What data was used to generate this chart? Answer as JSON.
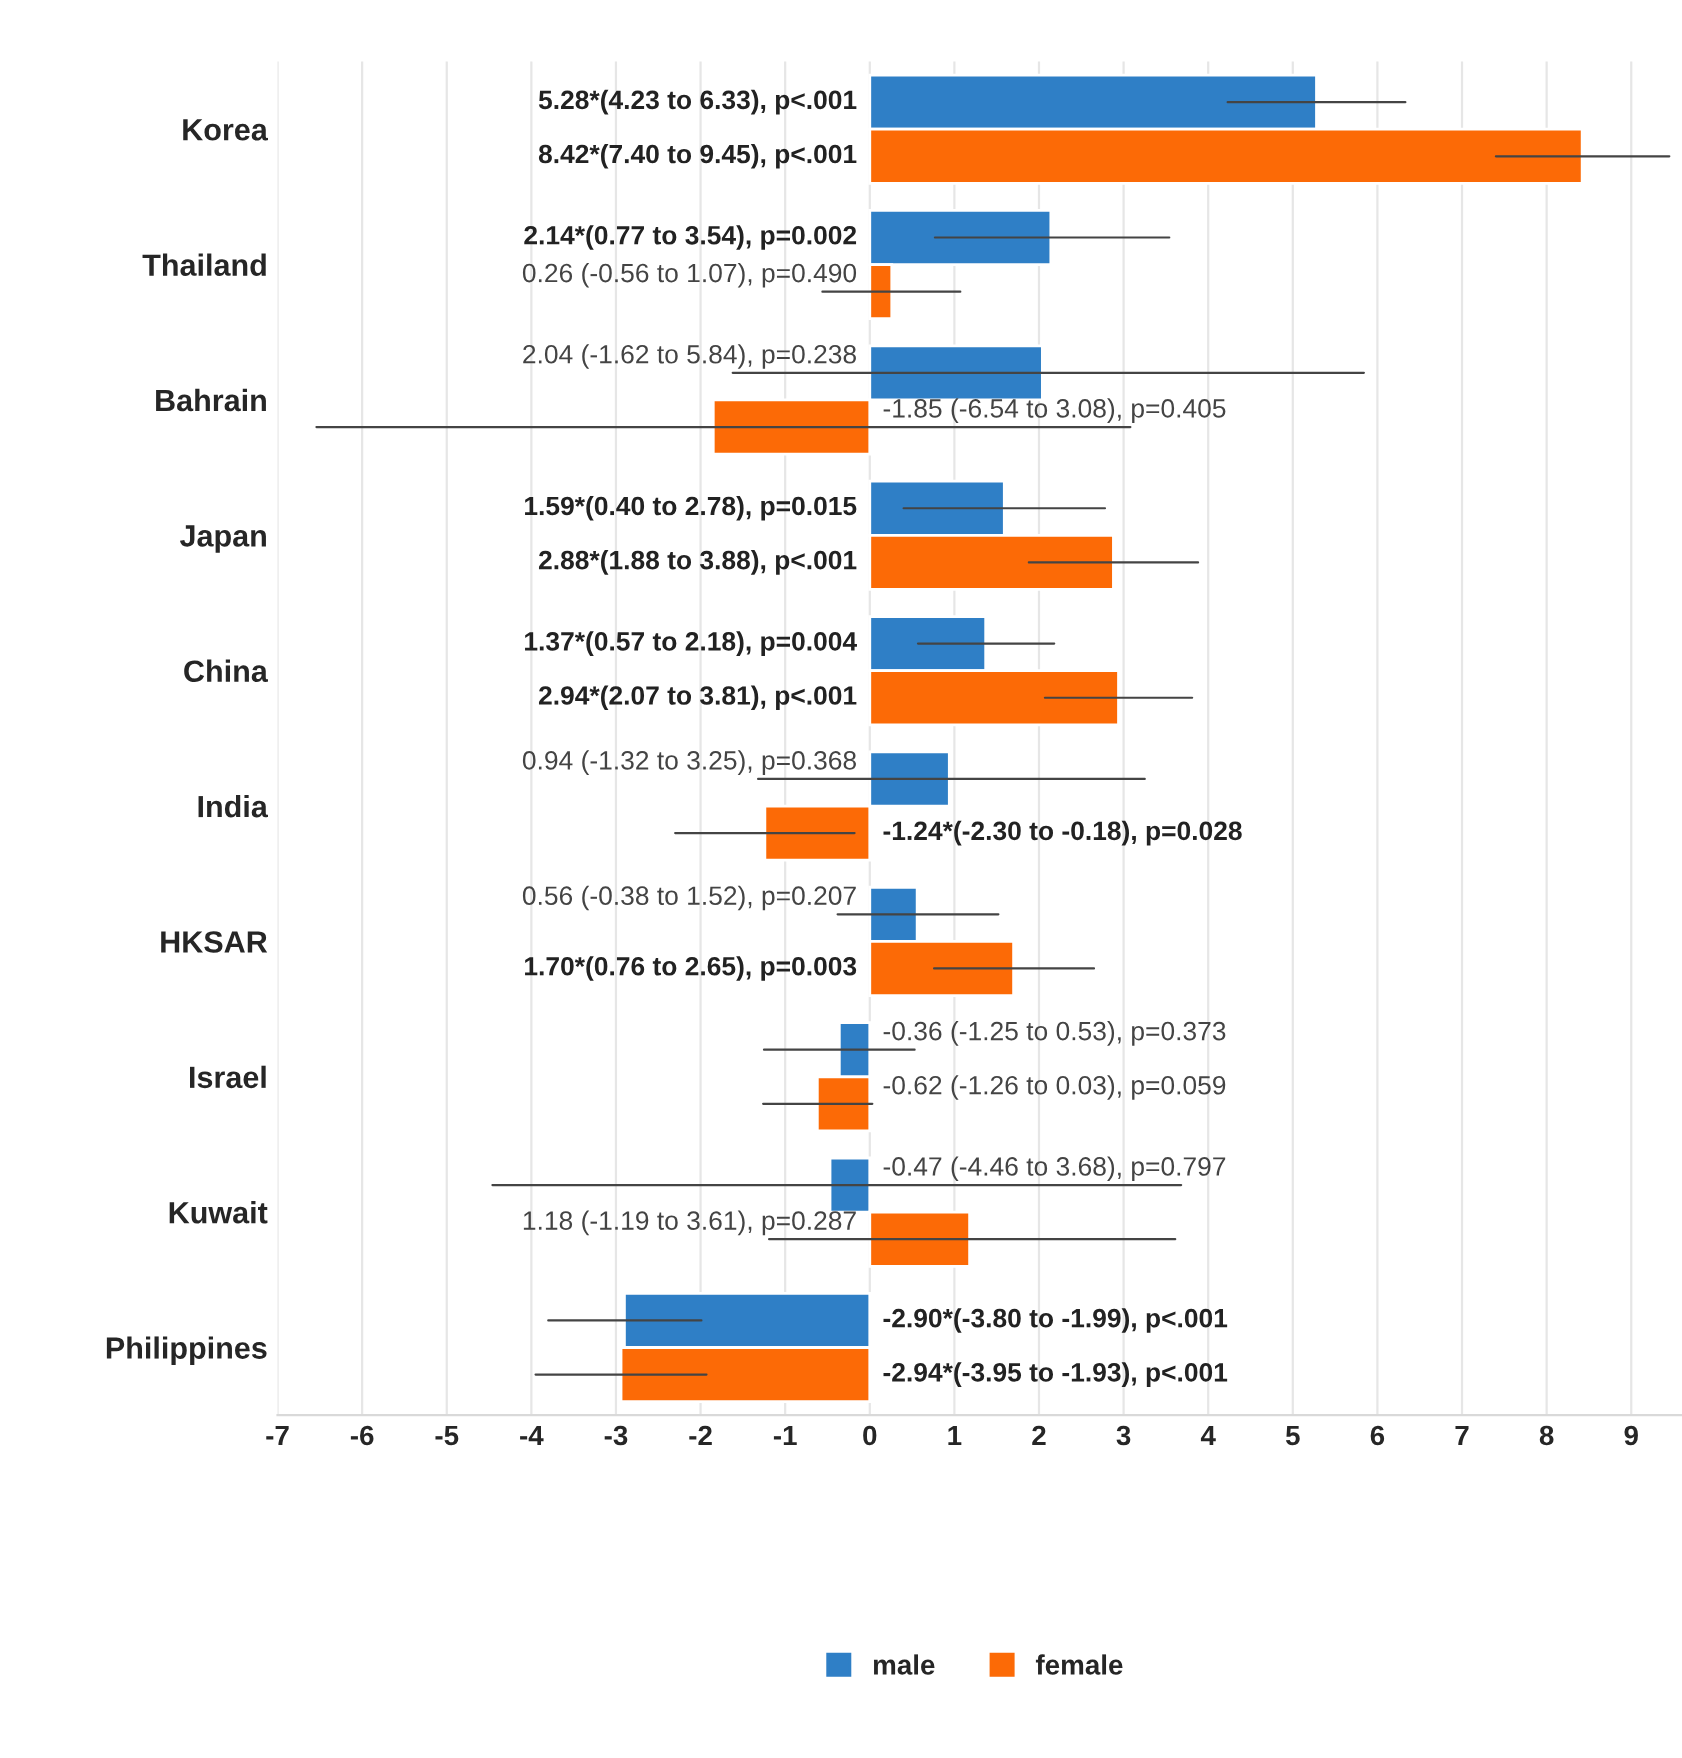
{
  "chart_data": {
    "type": "bar",
    "orientation": "horizontal",
    "categories": [
      "Korea",
      "Thailand",
      "Bahrain",
      "Japan",
      "China",
      "India",
      "HKSAR",
      "Israel",
      "Kuwait",
      "Philippines"
    ],
    "series": [
      {
        "name": "male",
        "color": "#2f7fc6",
        "values": [
          5.28,
          2.14,
          2.04,
          1.59,
          1.37,
          0.94,
          0.56,
          -0.36,
          -0.47,
          -2.9
        ],
        "errors": [
          [
            4.23,
            6.33
          ],
          [
            0.77,
            3.54
          ],
          [
            -1.62,
            5.84
          ],
          [
            0.4,
            2.78
          ],
          [
            0.57,
            2.18
          ],
          [
            -1.32,
            3.25
          ],
          [
            -0.38,
            1.52
          ],
          [
            -1.25,
            0.53
          ],
          [
            -4.46,
            3.68
          ],
          [
            -3.8,
            -1.99
          ]
        ],
        "value_labels": [
          "5.28*(4.23 to 6.33), p<.001",
          "2.14*(0.77 to 3.54), p=0.002",
          "2.04 (-1.62 to 5.84), p=0.238",
          "1.59*(0.40 to 2.78), p=0.015",
          "1.37*(0.57 to 2.18), p=0.004",
          "0.94 (-1.32 to 3.25), p=0.368",
          "0.56 (-0.38 to 1.52), p=0.207",
          "-0.36 (-1.25 to 0.53), p=0.373",
          "-0.47 (-4.46 to 3.68), p=0.797",
          "-2.90*(-3.80 to -1.99), p<.001"
        ]
      },
      {
        "name": "female",
        "color": "#fc6a06",
        "values": [
          8.42,
          0.26,
          -1.85,
          2.88,
          2.94,
          -1.24,
          1.7,
          -0.62,
          1.18,
          -2.94
        ],
        "errors": [
          [
            7.4,
            9.45
          ],
          [
            -0.56,
            1.07
          ],
          [
            -6.54,
            3.08
          ],
          [
            1.88,
            3.88
          ],
          [
            2.07,
            3.81
          ],
          [
            -2.3,
            -0.18
          ],
          [
            0.76,
            2.65
          ],
          [
            -1.26,
            0.03
          ],
          [
            -1.19,
            3.61
          ],
          [
            -3.95,
            -1.93
          ]
        ],
        "value_labels": [
          "8.42*(7.40 to 9.45), p<.001",
          "0.26 (-0.56 to 1.07), p=0.490",
          "-1.85 (-6.54 to 3.08), p=0.405",
          "2.88*(1.88 to 3.88), p<.001",
          "2.94*(2.07 to 3.81), p<.001",
          "-1.24*(-2.30 to -0.18), p=0.028",
          "1.70*(0.76 to 2.65), p=0.003",
          "-0.62 (-1.26 to 0.03), p=0.059",
          "1.18 (-1.19 to 3.61), p=0.287",
          "-2.94*(-3.95 to -1.93), p<.001"
        ]
      }
    ],
    "xlim": [
      -7,
      9.6
    ],
    "xticks": [
      -7,
      -6,
      -5,
      -4,
      -3,
      -2,
      -1,
      0,
      1,
      2,
      3,
      4,
      5,
      6,
      7,
      8,
      9
    ],
    "grid": "x",
    "legend": "bottom"
  }
}
